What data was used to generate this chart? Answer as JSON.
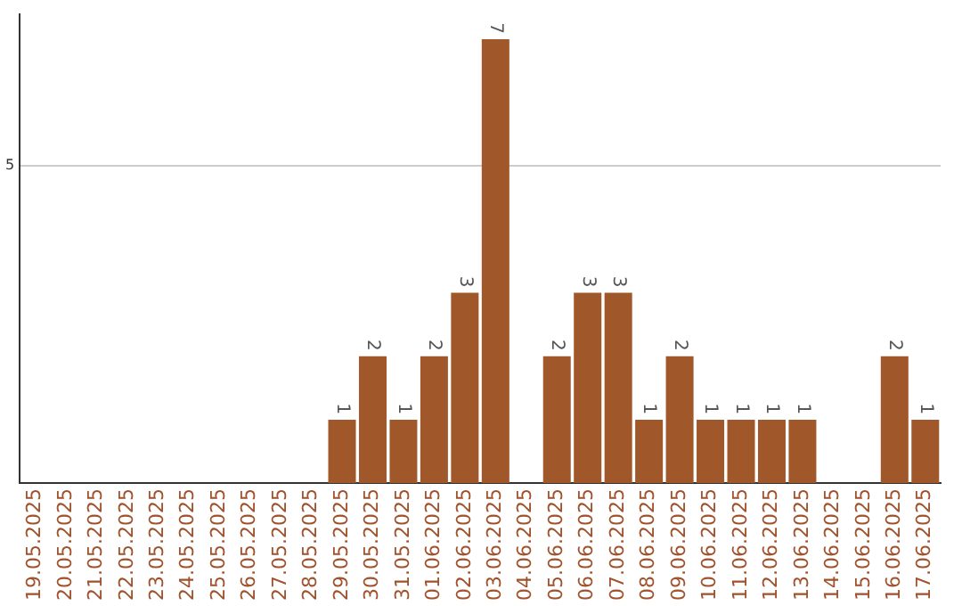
{
  "chart_data": {
    "type": "bar",
    "categories": [
      "19.05.2025",
      "20.05.2025",
      "21.05.2025",
      "22.05.2025",
      "23.05.2025",
      "24.05.2025",
      "25.05.2025",
      "26.05.2025",
      "27.05.2025",
      "28.05.2025",
      "29.05.2025",
      "30.05.2025",
      "31.05.2025",
      "01.06.2025",
      "02.06.2025",
      "03.06.2025",
      "04.06.2025",
      "05.06.2025",
      "06.06.2025",
      "07.06.2025",
      "08.06.2025",
      "09.06.2025",
      "10.06.2025",
      "11.06.2025",
      "12.06.2025",
      "13.06.2025",
      "14.06.2025",
      "15.06.2025",
      "16.06.2025",
      "17.06.2025"
    ],
    "values": [
      null,
      null,
      null,
      null,
      null,
      null,
      null,
      null,
      null,
      null,
      1,
      2,
      1,
      2,
      3,
      7,
      null,
      2,
      3,
      3,
      1,
      2,
      1,
      1,
      1,
      1,
      null,
      null,
      2,
      1
    ],
    "color": "#a0582a",
    "ylim": [
      0,
      7.4
    ],
    "yticks": [
      5
    ],
    "grid": "y",
    "data_labels": true,
    "legend": false
  }
}
